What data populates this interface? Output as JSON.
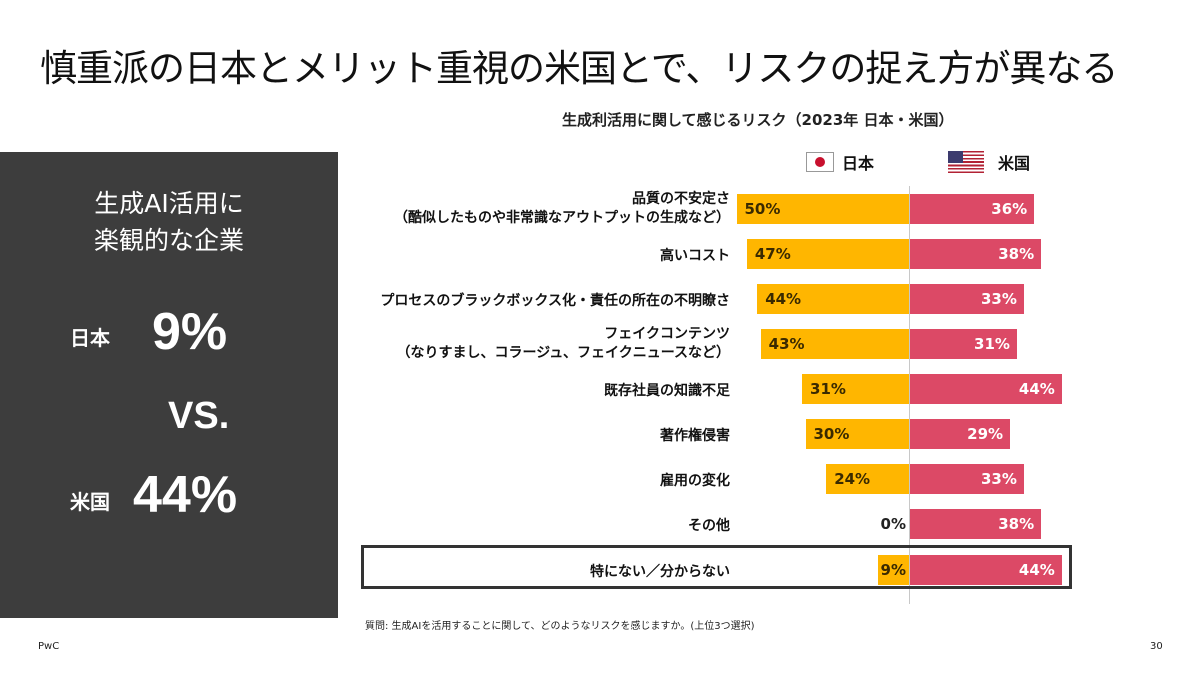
{
  "title": "慎重派の日本とメリット重視の米国とで、リスクの捉え方が異なる",
  "side_panel": {
    "heading_line1": "生成AI活用に",
    "heading_line2": "楽観的な企業",
    "japan_label": "日本",
    "japan_value": "9%",
    "vs": "VS.",
    "us_label": "米国",
    "us_value": "44%"
  },
  "legend": {
    "japan": "日本",
    "us": "米国"
  },
  "footnote": "質問: 生成AIを活用することに関して、どのようなリスクを感じますか。(上位3つ選択)",
  "brand": "PwC",
  "page_number": "30",
  "colors": {
    "japan_bar": "#ffb600",
    "us_bar": "#dc4966",
    "panel": "#3d3d3d"
  },
  "chart_data": {
    "type": "bar",
    "title": "生成利活用に関して感じるリスク（2023年 日本・米国）",
    "orientation": "horizontal-diverging",
    "categories": [
      [
        "品質の不安定さ",
        "（酷似したものや非常識なアウトプットの生成など）"
      ],
      [
        "高いコスト"
      ],
      [
        "プロセスのブラックボックス化・責任の所在の不明瞭さ"
      ],
      [
        "フェイクコンテンツ",
        "（なりすまし、コラージュ、フェイクニュースなど）"
      ],
      [
        "既存社員の知識不足"
      ],
      [
        "著作権侵害"
      ],
      [
        "雇用の変化"
      ],
      [
        "その他"
      ],
      [
        "特にない／分からない"
      ]
    ],
    "series": [
      {
        "name": "日本",
        "values": [
          50,
          47,
          44,
          43,
          31,
          30,
          24,
          0,
          9
        ],
        "labels": [
          "50%",
          "47%",
          "44%",
          "43%",
          "31%",
          "30%",
          "24%",
          "0%",
          "9%"
        ]
      },
      {
        "name": "米国",
        "values": [
          36,
          38,
          33,
          31,
          44,
          29,
          33,
          38,
          44
        ],
        "labels": [
          "36%",
          "38%",
          "33%",
          "31%",
          "44%",
          "29%",
          "33%",
          "38%",
          "44%"
        ]
      }
    ],
    "highlighted_category_index": 8
  }
}
